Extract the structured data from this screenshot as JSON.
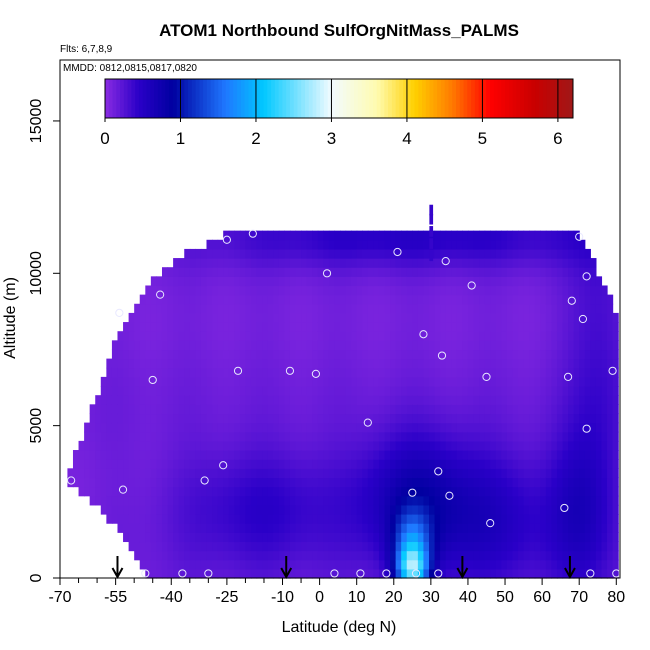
{
  "chart_data": {
    "type": "heatmap",
    "title": "ATOM1 Northbound SulfOrgNitMass_PALMS",
    "flights_note": "Flts: 6,7,8,9",
    "dates_note": "MMDD: 0812,0815,0817,0820",
    "xlabel": "Latitude (deg N)",
    "ylabel": "Altitude (m)",
    "xlim": [
      -70,
      81
    ],
    "ylim": [
      0,
      17000
    ],
    "x_ticks": [
      -70,
      -55,
      -40,
      -25,
      -10,
      0,
      10,
      20,
      30,
      40,
      50,
      60,
      70,
      80
    ],
    "y_ticks": [
      0,
      5000,
      10000,
      15000
    ],
    "colorbar": {
      "min": 0,
      "max": 6.2,
      "ticks": [
        0,
        1,
        2,
        3,
        4,
        5,
        6
      ],
      "stops": [
        {
          "v": 0.0,
          "c": "#8a2be2"
        },
        {
          "v": 0.45,
          "c": "#2a00c8"
        },
        {
          "v": 0.9,
          "c": "#0000a0"
        },
        {
          "v": 1.6,
          "c": "#1f78ff"
        },
        {
          "v": 2.1,
          "c": "#00c8ff"
        },
        {
          "v": 3.0,
          "c": "#f2fbff"
        },
        {
          "v": 3.6,
          "c": "#fffbb0"
        },
        {
          "v": 4.1,
          "c": "#ffd000"
        },
        {
          "v": 4.6,
          "c": "#ff7a00"
        },
        {
          "v": 5.1,
          "c": "#ff0000"
        },
        {
          "v": 5.7,
          "c": "#c80000"
        },
        {
          "v": 6.2,
          "c": "#a01818"
        }
      ]
    },
    "coverage": {
      "lat": [
        -68,
        -66,
        -64,
        -62,
        -60,
        -58,
        -56,
        -54,
        -52,
        -50,
        -48,
        -46,
        -44,
        -42,
        -40,
        -38,
        -36,
        -34,
        -32,
        -30,
        -28,
        -26,
        -24
      ],
      "top": [
        3500,
        4000,
        4600,
        5300,
        6000,
        6800,
        7500,
        8000,
        8500,
        8800,
        9300,
        9600,
        9900,
        10100,
        10300,
        10500,
        10700,
        10800,
        10900,
        11000,
        11100,
        11200,
        11400
      ]
    },
    "coverage_right": {
      "lat": [
        70,
        72,
        74,
        76,
        78,
        80
      ],
      "top": [
        11400,
        10800,
        10300,
        9800,
        9300,
        8500
      ]
    },
    "bottom_by_lat": {
      "lat": [
        -68,
        -60,
        -55,
        -50,
        -47
      ],
      "bottom": [
        3200,
        2300,
        1700,
        800,
        0
      ]
    },
    "field_features": [
      {
        "lat": 25,
        "alt": 300,
        "sx": 3,
        "sy": 500,
        "amp": 1.9
      },
      {
        "lat": 25,
        "alt": 1200,
        "sx": 3.5,
        "sy": 700,
        "amp": 1.0
      },
      {
        "lat": 25,
        "alt": 2600,
        "sx": 10,
        "sy": 1500,
        "amp": 0.55
      },
      {
        "lat": 45,
        "alt": 2000,
        "sx": 14,
        "sy": 1600,
        "amp": 0.45
      },
      {
        "lat": -15,
        "alt": 2300,
        "sx": 18,
        "sy": 1400,
        "amp": 0.35
      },
      {
        "lat": 70,
        "alt": 2200,
        "sx": 6,
        "sy": 1800,
        "amp": 0.35
      },
      {
        "lat": 25,
        "alt": 11200,
        "sx": 40,
        "sy": 700,
        "amp": 0.35
      },
      {
        "lat": 75,
        "alt": 7000,
        "sx": 6,
        "sy": 5000,
        "amp": 0.25
      }
    ],
    "sample_points": [
      {
        "lat": -67,
        "alt": 3200
      },
      {
        "lat": -53,
        "alt": 2900
      },
      {
        "lat": -54,
        "alt": 8700
      },
      {
        "lat": -45,
        "alt": 6500
      },
      {
        "lat": -43,
        "alt": 9300
      },
      {
        "lat": -47,
        "alt": 150
      },
      {
        "lat": -37,
        "alt": 150
      },
      {
        "lat": -30,
        "alt": 150
      },
      {
        "lat": -31,
        "alt": 3200
      },
      {
        "lat": -26,
        "alt": 3700
      },
      {
        "lat": -22,
        "alt": 6800
      },
      {
        "lat": -25,
        "alt": 11100
      },
      {
        "lat": -18,
        "alt": 11300
      },
      {
        "lat": -8,
        "alt": 6800
      },
      {
        "lat": -1,
        "alt": 6700
      },
      {
        "lat": 2,
        "alt": 10000
      },
      {
        "lat": 4,
        "alt": 150
      },
      {
        "lat": 11,
        "alt": 150
      },
      {
        "lat": 13,
        "alt": 5100
      },
      {
        "lat": 18,
        "alt": 150
      },
      {
        "lat": 21,
        "alt": 10700
      },
      {
        "lat": 25,
        "alt": 2800
      },
      {
        "lat": 26,
        "alt": 150
      },
      {
        "lat": 28,
        "alt": 8000
      },
      {
        "lat": 32,
        "alt": 150
      },
      {
        "lat": 32,
        "alt": 3500
      },
      {
        "lat": 33,
        "alt": 7300
      },
      {
        "lat": 35,
        "alt": 2700
      },
      {
        "lat": 34,
        "alt": 10400
      },
      {
        "lat": 41,
        "alt": 9600
      },
      {
        "lat": 45,
        "alt": 6600
      },
      {
        "lat": 46,
        "alt": 1800
      },
      {
        "lat": 66,
        "alt": 2300
      },
      {
        "lat": 67,
        "alt": 6600
      },
      {
        "lat": 68,
        "alt": 9100
      },
      {
        "lat": 70,
        "alt": 11200
      },
      {
        "lat": 71,
        "alt": 8500
      },
      {
        "lat": 72,
        "alt": 9900
      },
      {
        "lat": 72,
        "alt": 4900
      },
      {
        "lat": 73,
        "alt": 150
      },
      {
        "lat": 79,
        "alt": 6800
      },
      {
        "lat": 80,
        "alt": 150
      }
    ],
    "arrows_lat": [
      -54.5,
      -9,
      38.5,
      67.5
    ],
    "plot_area": {
      "lat_min": -70,
      "lat_max": 81,
      "alt_min": 0,
      "alt_max": 17000
    }
  }
}
